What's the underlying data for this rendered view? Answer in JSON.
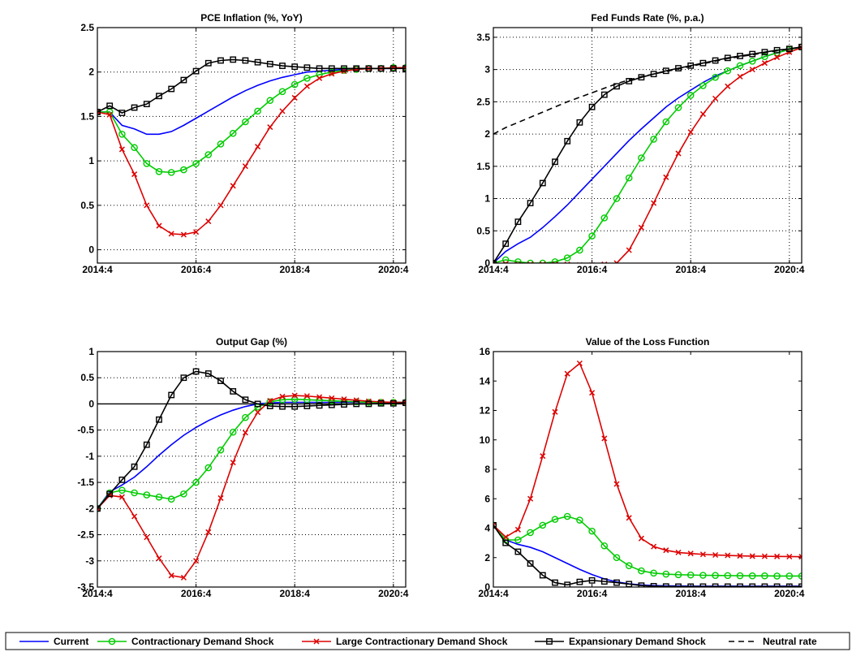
{
  "chart_data": [
    {
      "type": "line",
      "title": "PCE Inflation (%, YoY)",
      "xlim": [
        0,
        25
      ],
      "xticks": [
        {
          "x": 0,
          "label": "2014:4"
        },
        {
          "x": 8,
          "label": "2016:4"
        },
        {
          "x": 16,
          "label": "2018:4"
        },
        {
          "x": 24,
          "label": "2020:4"
        }
      ],
      "ylim": [
        -0.15,
        2.5
      ],
      "yticks": [
        {
          "y": 0,
          "label": "0"
        },
        {
          "y": 0.5,
          "label": "0.5"
        },
        {
          "y": 1,
          "label": "1"
        },
        {
          "y": 1.5,
          "label": "1.5"
        },
        {
          "y": 2,
          "label": "2"
        },
        {
          "y": 2.5,
          "label": "2.5"
        }
      ],
      "grid": true,
      "series": [
        {
          "key": "current",
          "values": [
            1.55,
            1.55,
            1.4,
            1.36,
            1.3,
            1.3,
            1.33,
            1.4,
            1.48,
            1.56,
            1.64,
            1.72,
            1.79,
            1.85,
            1.9,
            1.94,
            1.97,
            2.0,
            2.01,
            2.02,
            2.03,
            2.03,
            2.04,
            2.04,
            2.04,
            2.05
          ]
        },
        {
          "key": "contractionary",
          "values": [
            1.55,
            1.55,
            1.3,
            1.15,
            0.97,
            0.88,
            0.87,
            0.9,
            0.97,
            1.07,
            1.19,
            1.31,
            1.44,
            1.56,
            1.68,
            1.78,
            1.86,
            1.93,
            1.97,
            2.0,
            2.02,
            2.03,
            2.04,
            2.04,
            2.05,
            2.05
          ]
        },
        {
          "key": "large_contractionary",
          "values": [
            1.55,
            1.52,
            1.13,
            0.85,
            0.5,
            0.27,
            0.18,
            0.17,
            0.2,
            0.32,
            0.5,
            0.72,
            0.94,
            1.16,
            1.38,
            1.56,
            1.71,
            1.84,
            1.93,
            1.98,
            2.01,
            2.03,
            2.04,
            2.04,
            2.05,
            2.05
          ]
        },
        {
          "key": "expansionary",
          "values": [
            1.55,
            1.62,
            1.54,
            1.6,
            1.64,
            1.73,
            1.81,
            1.91,
            2.01,
            2.1,
            2.13,
            2.14,
            2.13,
            2.11,
            2.09,
            2.07,
            2.06,
            2.05,
            2.04,
            2.04,
            2.04,
            2.04,
            2.04,
            2.04,
            2.04,
            2.04
          ]
        }
      ]
    },
    {
      "type": "line",
      "title": "Fed Funds Rate (%, p.a.)",
      "xlim": [
        0,
        25
      ],
      "xticks": [
        {
          "x": 0,
          "label": "2014:4"
        },
        {
          "x": 8,
          "label": "2016:4"
        },
        {
          "x": 16,
          "label": "2018:4"
        },
        {
          "x": 24,
          "label": "2020:4"
        }
      ],
      "ylim": [
        0,
        3.65
      ],
      "yticks": [
        {
          "y": 0,
          "label": "0"
        },
        {
          "y": 0.5,
          "label": "0.5"
        },
        {
          "y": 1,
          "label": "1"
        },
        {
          "y": 1.5,
          "label": "1.5"
        },
        {
          "y": 2,
          "label": "2"
        },
        {
          "y": 2.5,
          "label": "2.5"
        },
        {
          "y": 3,
          "label": "3"
        },
        {
          "y": 3.5,
          "label": "3.5"
        }
      ],
      "grid": true,
      "series": [
        {
          "key": "current",
          "values": [
            0,
            0.18,
            0.3,
            0.4,
            0.55,
            0.72,
            0.9,
            1.1,
            1.3,
            1.5,
            1.7,
            1.9,
            2.08,
            2.25,
            2.42,
            2.56,
            2.68,
            2.8,
            2.9,
            2.98,
            3.06,
            3.13,
            3.2,
            3.26,
            3.31,
            3.35
          ]
        },
        {
          "key": "contractionary",
          "values": [
            0,
            0.05,
            0.02,
            0.0,
            0.0,
            0.02,
            0.08,
            0.2,
            0.42,
            0.7,
            1.0,
            1.32,
            1.63,
            1.92,
            2.19,
            2.41,
            2.6,
            2.75,
            2.88,
            2.98,
            3.06,
            3.13,
            3.2,
            3.26,
            3.31,
            3.35
          ]
        },
        {
          "key": "large_contractionary",
          "values": [
            0,
            -0.01,
            -0.02,
            -0.02,
            -0.02,
            -0.02,
            -0.02,
            -0.03,
            -0.03,
            -0.02,
            0.0,
            0.2,
            0.55,
            0.93,
            1.33,
            1.7,
            2.03,
            2.31,
            2.55,
            2.74,
            2.89,
            3.0,
            3.1,
            3.19,
            3.27,
            3.34
          ]
        },
        {
          "key": "expansionary",
          "values": [
            0,
            0.3,
            0.64,
            0.93,
            1.24,
            1.57,
            1.89,
            2.18,
            2.42,
            2.61,
            2.74,
            2.82,
            2.88,
            2.93,
            2.98,
            3.02,
            3.06,
            3.1,
            3.14,
            3.18,
            3.21,
            3.24,
            3.27,
            3.3,
            3.32,
            3.35
          ]
        },
        {
          "key": "neutral",
          "values": [
            2.0,
            2.1,
            2.18,
            2.26,
            2.34,
            2.42,
            2.5,
            2.57,
            2.64,
            2.71,
            2.78,
            2.84,
            2.89,
            2.93,
            2.97,
            3.01,
            3.05,
            3.09,
            3.13,
            3.17,
            3.2,
            3.23,
            3.26,
            3.29,
            3.32,
            3.35
          ]
        }
      ]
    },
    {
      "type": "line",
      "title": "Output Gap (%)",
      "xlim": [
        0,
        25
      ],
      "xticks": [
        {
          "x": 0,
          "label": "2014:4"
        },
        {
          "x": 8,
          "label": "2016:4"
        },
        {
          "x": 16,
          "label": "2018:4"
        },
        {
          "x": 24,
          "label": "2020:4"
        }
      ],
      "ylim": [
        -3.5,
        1
      ],
      "yticks": [
        {
          "y": -3.5,
          "label": "-3.5"
        },
        {
          "y": -3,
          "label": "-3"
        },
        {
          "y": -2.5,
          "label": "-2.5"
        },
        {
          "y": -2,
          "label": "-2"
        },
        {
          "y": -1.5,
          "label": "-1.5"
        },
        {
          "y": -1,
          "label": "-1"
        },
        {
          "y": -0.5,
          "label": "-0.5"
        },
        {
          "y": 0,
          "label": "0"
        },
        {
          "y": 0.5,
          "label": "0.5"
        },
        {
          "y": 1,
          "label": "1"
        }
      ],
      "grid": true,
      "zero_line": true,
      "series": [
        {
          "key": "current",
          "values": [
            -2.0,
            -1.68,
            -1.55,
            -1.4,
            -1.2,
            -0.98,
            -0.78,
            -0.6,
            -0.45,
            -0.32,
            -0.21,
            -0.12,
            -0.05,
            0.0,
            0.02,
            0.03,
            0.03,
            0.03,
            0.03,
            0.03,
            0.03,
            0.03,
            0.03,
            0.03,
            0.03,
            0.03
          ]
        },
        {
          "key": "contractionary",
          "values": [
            -2.0,
            -1.7,
            -1.65,
            -1.7,
            -1.74,
            -1.78,
            -1.82,
            -1.72,
            -1.5,
            -1.22,
            -0.88,
            -0.54,
            -0.26,
            -0.06,
            0.04,
            0.08,
            0.09,
            0.08,
            0.07,
            0.06,
            0.05,
            0.04,
            0.03,
            0.03,
            0.03,
            0.03
          ]
        },
        {
          "key": "large_contractionary",
          "values": [
            -2.0,
            -1.75,
            -1.78,
            -2.15,
            -2.55,
            -2.95,
            -3.28,
            -3.32,
            -3.0,
            -2.45,
            -1.8,
            -1.12,
            -0.55,
            -0.16,
            0.06,
            0.14,
            0.16,
            0.15,
            0.13,
            0.11,
            0.09,
            0.07,
            0.05,
            0.04,
            0.03,
            0.03
          ]
        },
        {
          "key": "expansionary",
          "values": [
            -2.0,
            -1.72,
            -1.45,
            -1.2,
            -0.78,
            -0.3,
            0.17,
            0.5,
            0.62,
            0.58,
            0.44,
            0.24,
            0.08,
            0.0,
            -0.04,
            -0.05,
            -0.05,
            -0.04,
            -0.03,
            -0.02,
            -0.01,
            0.0,
            0.0,
            0.01,
            0.01,
            0.02
          ]
        }
      ]
    },
    {
      "type": "line",
      "title": "Value of the Loss Function",
      "xlim": [
        0,
        25
      ],
      "xticks": [
        {
          "x": 0,
          "label": "2014:4"
        },
        {
          "x": 8,
          "label": "2016:4"
        },
        {
          "x": 16,
          "label": "2018:4"
        },
        {
          "x": 24,
          "label": "2020:4"
        }
      ],
      "ylim": [
        0,
        16
      ],
      "yticks": [
        {
          "y": 0,
          "label": "0"
        },
        {
          "y": 2,
          "label": "2"
        },
        {
          "y": 4,
          "label": "4"
        },
        {
          "y": 6,
          "label": "6"
        },
        {
          "y": 8,
          "label": "8"
        },
        {
          "y": 10,
          "label": "10"
        },
        {
          "y": 12,
          "label": "12"
        },
        {
          "y": 14,
          "label": "14"
        },
        {
          "y": 16,
          "label": "16"
        }
      ],
      "grid": false,
      "series": [
        {
          "key": "current",
          "values": [
            4.2,
            3.2,
            2.9,
            2.7,
            2.4,
            2.0,
            1.6,
            1.2,
            0.85,
            0.55,
            0.35,
            0.22,
            0.14,
            0.1,
            0.08,
            0.07,
            0.06,
            0.06,
            0.06,
            0.06,
            0.06,
            0.06,
            0.06,
            0.06,
            0.06,
            0.06
          ]
        },
        {
          "key": "contractionary",
          "values": [
            4.2,
            3.2,
            3.2,
            3.7,
            4.2,
            4.6,
            4.8,
            4.55,
            3.8,
            2.8,
            2.0,
            1.45,
            1.1,
            0.95,
            0.88,
            0.84,
            0.82,
            0.8,
            0.79,
            0.78,
            0.77,
            0.76,
            0.76,
            0.75,
            0.75,
            0.75
          ]
        },
        {
          "key": "large_contractionary",
          "values": [
            4.2,
            3.4,
            3.9,
            6.0,
            8.9,
            11.9,
            14.5,
            15.2,
            13.2,
            10.1,
            7.0,
            4.7,
            3.3,
            2.75,
            2.5,
            2.35,
            2.28,
            2.22,
            2.18,
            2.15,
            2.12,
            2.1,
            2.09,
            2.08,
            2.07,
            2.06
          ]
        },
        {
          "key": "expansionary",
          "values": [
            4.2,
            3.0,
            2.4,
            1.6,
            0.8,
            0.3,
            0.15,
            0.35,
            0.45,
            0.38,
            0.3,
            0.2,
            0.1,
            0.06,
            0.04,
            0.03,
            0.03,
            0.03,
            0.03,
            0.03,
            0.03,
            0.03,
            0.03,
            0.03,
            0.03,
            0.03
          ]
        }
      ]
    }
  ],
  "series_styles": {
    "current": {
      "color": "#0000ff",
      "marker": "none",
      "dash": false
    },
    "contractionary": {
      "color": "#00cc00",
      "marker": "circle",
      "dash": false
    },
    "large_contractionary": {
      "color": "#dd0000",
      "marker": "x",
      "dash": false
    },
    "expansionary": {
      "color": "#000000",
      "marker": "square",
      "dash": false
    },
    "neutral": {
      "color": "#000000",
      "marker": "none",
      "dash": true
    }
  },
  "legend": {
    "placement": "bottom",
    "items": [
      {
        "key": "current",
        "label": "Current"
      },
      {
        "key": "contractionary",
        "label": "Contractionary Demand Shock"
      },
      {
        "key": "large_contractionary",
        "label": "Large Contractionary Demand Shock"
      },
      {
        "key": "expansionary",
        "label": "Expansionary Demand Shock"
      },
      {
        "key": "neutral",
        "label": "Neutral rate"
      }
    ]
  }
}
